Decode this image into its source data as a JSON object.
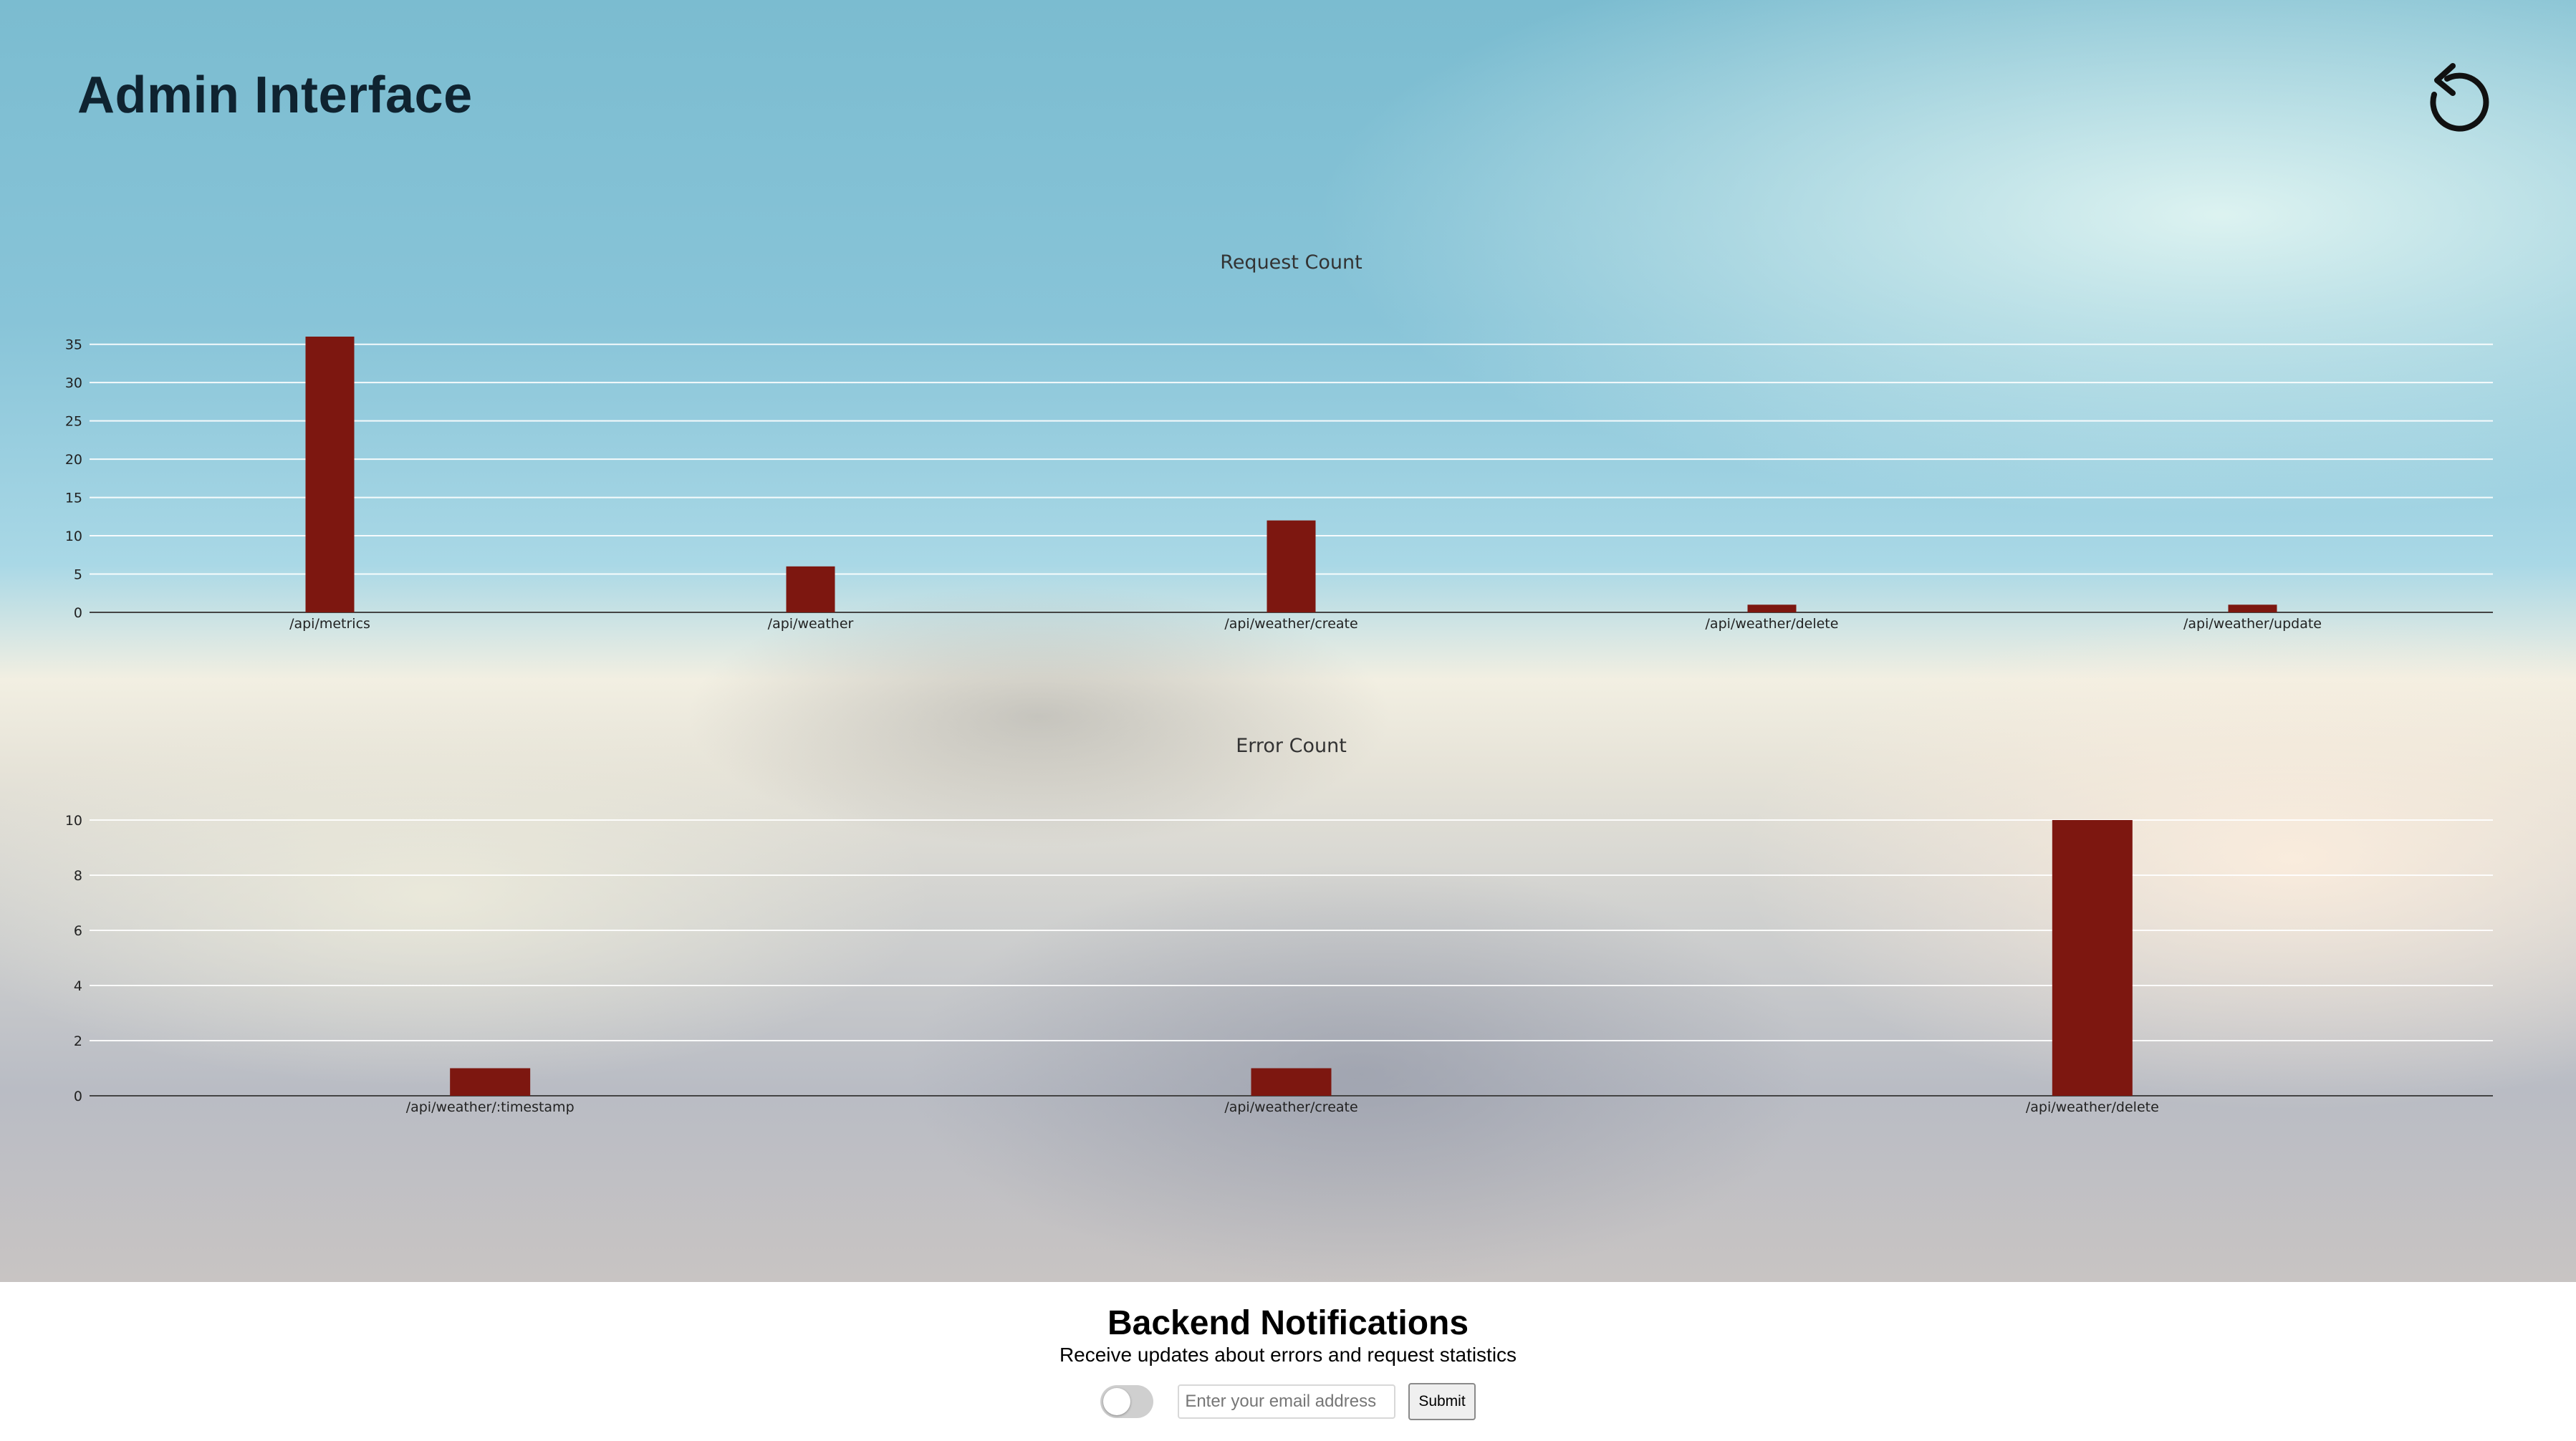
{
  "header": {
    "title": "Admin Interface",
    "refresh_icon": "refresh-icon"
  },
  "chart_data": [
    {
      "type": "bar",
      "title": "Request Count",
      "categories": [
        "/api/metrics",
        "/api/weather",
        "/api/weather/create",
        "/api/weather/delete",
        "/api/weather/update"
      ],
      "values": [
        36,
        6,
        12,
        1,
        1
      ],
      "yticks": [
        0,
        5,
        10,
        15,
        20,
        25,
        30,
        35
      ],
      "ylim": [
        0,
        36
      ],
      "grid": true,
      "bar_color": "#7d1710"
    },
    {
      "type": "bar",
      "title": "Error Count",
      "categories": [
        "/api/weather/:timestamp",
        "/api/weather/create",
        "/api/weather/delete"
      ],
      "values": [
        1,
        1,
        10
      ],
      "yticks": [
        0,
        2,
        4,
        6,
        8,
        10
      ],
      "ylim": [
        0,
        10
      ],
      "grid": true,
      "bar_color": "#7d1710"
    }
  ],
  "footer": {
    "title": "Backend Notifications",
    "subtitle": "Receive updates about errors and request statistics",
    "email_placeholder": "Enter your email address",
    "submit_label": "Submit",
    "toggle_on": false
  }
}
